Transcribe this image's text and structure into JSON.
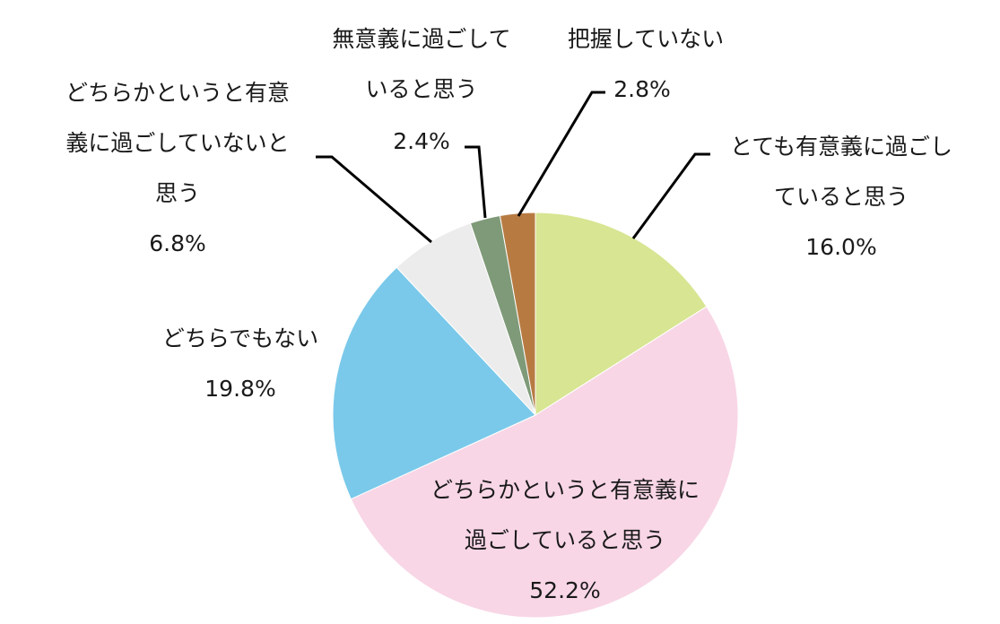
{
  "chart_data": {
    "type": "pie",
    "title": "",
    "start_angle": "12 o'clock",
    "direction": "clockwise",
    "slices": [
      {
        "name": "とても有意義に過ごしていると思う",
        "label_lines": [
          "とても有意義に過ごし",
          "ていると思う"
        ],
        "value": 16.0,
        "value_label": "16.0%",
        "color": "#d8e592"
      },
      {
        "name": "どちらかというと有意義に過ごしていると思う",
        "label_lines": [
          "どちらかというと有意義に",
          "過ごしていると思う"
        ],
        "value": 52.2,
        "value_label": "52.2%",
        "color": "#f8d6e6"
      },
      {
        "name": "どちらでもない",
        "label_lines": [
          "どちらでもない"
        ],
        "value": 19.8,
        "value_label": "19.8%",
        "color": "#7ac9ea"
      },
      {
        "name": "どちらかというと有意義に過ごしていないと思う",
        "label_lines": [
          "どちらかというと有意",
          "義に過ごしていないと",
          "思う"
        ],
        "value": 6.8,
        "value_label": "6.8%",
        "color": "#ececec"
      },
      {
        "name": "無意義に過ごしていると思う",
        "label_lines": [
          "無意義に過ごして",
          "いると思う"
        ],
        "value": 2.4,
        "value_label": "2.4%",
        "color": "#7f9a78"
      },
      {
        "name": "把握していない",
        "label_lines": [
          "把握していない"
        ],
        "value": 2.8,
        "value_label": "2.8%",
        "color": "#b77b42"
      }
    ]
  }
}
